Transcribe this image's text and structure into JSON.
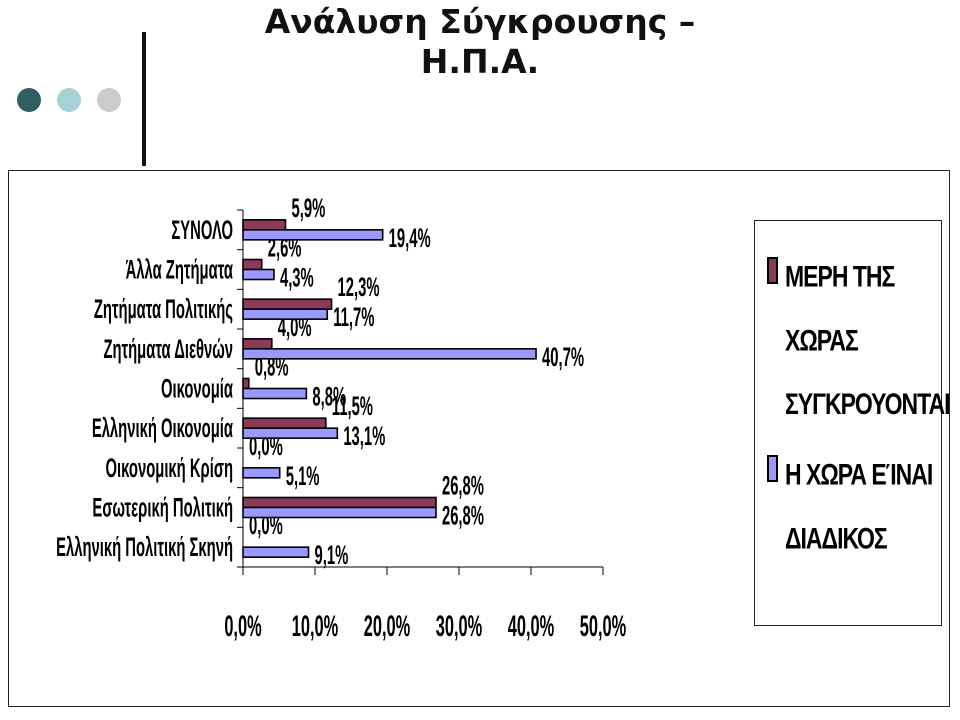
{
  "slide": {
    "title_line1": "Ανάλυση Σύγκρουσης –",
    "title_line2": "Η.Π.Α.",
    "dot_colors": [
      "#2f5f63",
      "#a6d3d8",
      "#cccccc"
    ]
  },
  "chart_data": {
    "type": "bar",
    "orientation": "horizontal",
    "categories": [
      "ΣΥΝΟΛΟ",
      "Άλλα Ζητήματα",
      "Ζητήματα Πολιτικής",
      "Ζητήματα Διεθνών",
      "Οικονομία",
      "Ελληνική Οικονομία",
      "Οικονομική Κρίση",
      "Εσωτερική Πολιτική",
      "Ελληνική Πολιτική Σκηνή"
    ],
    "series": [
      {
        "name": "ΜΕΡΗ ΤΗΣ ΧΩΡΑΣ ΣΥΓΚΡΟΥΟΝΤΑΙ",
        "color": "#8b3a5a",
        "values": [
          5.9,
          2.6,
          12.3,
          4.0,
          0.8,
          11.5,
          0.0,
          26.8,
          0.0
        ],
        "labels": [
          "5,9%",
          "2,6%",
          "12,3%",
          "4,0%",
          "0,8%",
          "11,5%",
          "0,0%",
          "26,8%",
          "0,0%"
        ]
      },
      {
        "name": "Η ΧΩΡΑ ΕΊΝΑΙ ΔΙΑΔΙΚΟΣ",
        "color": "#9999ff",
        "values": [
          19.4,
          4.3,
          11.7,
          40.7,
          8.8,
          13.1,
          5.1,
          26.8,
          9.1
        ],
        "labels": [
          "19,4%",
          "4,3%",
          "11,7%",
          "40,7%",
          "8,8%",
          "13,1%",
          "5,1%",
          "26,8%",
          "9,1%"
        ]
      }
    ],
    "xlim": [
      0,
      50
    ],
    "xticks": [
      "0,0%",
      "10,0%",
      "20,0%",
      "30,0%",
      "40,0%",
      "50,0%"
    ],
    "legend_lines": [
      [
        "ΜΕΡΗ ΤΗΣ",
        "ΧΩΡΑΣ",
        "ΣΥΓΚΡΟΥΟΝΤΑΙ"
      ],
      [
        "Η ΧΩΡΑ ΕΊΝΑΙ",
        "ΔΙΑΔΙΚΟΣ"
      ]
    ],
    "legend_position": "right",
    "grid": false
  }
}
